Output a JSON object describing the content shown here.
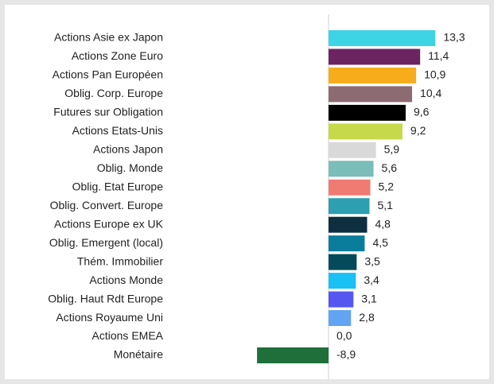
{
  "chart_data": {
    "type": "bar",
    "orientation": "horizontal",
    "categories": [
      "Actions Asie ex Japon",
      "Actions Zone Euro",
      "Actions Pan Européen",
      "Oblig. Corp. Europe",
      "Futures sur Obligation",
      "Actions Etats-Unis",
      "Actions Japon",
      "Oblig. Monde",
      "Oblig. Etat Europe",
      "Oblig. Convert. Europe",
      "Actions Europe ex UK",
      "Oblig. Emergent (local)",
      "Thém. Immobilier",
      "Actions Monde",
      "Oblig. Haut Rdt Europe",
      "Actions Royaume Uni",
      "Actions EMEA",
      "Monétaire"
    ],
    "values": [
      13.3,
      11.4,
      10.9,
      10.4,
      9.6,
      9.2,
      5.9,
      5.6,
      5.2,
      5.1,
      4.8,
      4.5,
      3.5,
      3.4,
      3.1,
      2.8,
      0.0,
      -8.9
    ],
    "value_labels": [
      "13,3",
      "11,4",
      "10,9",
      "10,4",
      "9,6",
      "9,2",
      "5,9",
      "5,6",
      "5,2",
      "5,1",
      "4,8",
      "4,5",
      "3,5",
      "3,4",
      "3,1",
      "2,8",
      "0,0",
      "-8,9"
    ],
    "colors": [
      "#3dd5e6",
      "#6b2461",
      "#f7ac1b",
      "#8d6b73",
      "#000000",
      "#c5d94a",
      "#d9d9d9",
      "#7bbdb8",
      "#f07b72",
      "#2d9fb0",
      "#0d2f3f",
      "#0b7d9c",
      "#054a5a",
      "#19c1f5",
      "#5656f0",
      "#62a4f2",
      "#999999",
      "#1e6f3a"
    ]
  }
}
